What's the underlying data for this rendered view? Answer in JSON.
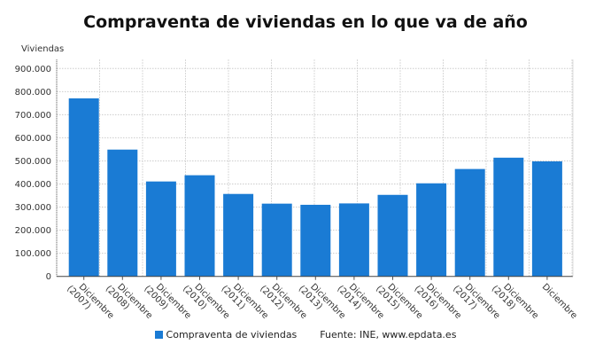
{
  "chart_data": {
    "type": "bar",
    "title": "Compraventa de viviendas en lo que va de año",
    "ylabel": "Viviendas",
    "xlabel": "",
    "ylim": [
      0,
      900000
    ],
    "yticks": [
      "0",
      "100.000",
      "200.000",
      "300.000",
      "400.000",
      "500.000",
      "600.000",
      "700.000",
      "800.000",
      "900.000"
    ],
    "grid": true,
    "legend_position": "bottom",
    "categories": [
      [
        "Diciembre",
        "(2007)"
      ],
      [
        "Diciembre",
        "(2008)"
      ],
      [
        "Diciembre",
        "(2009)"
      ],
      [
        "Diciembre",
        "(2010)"
      ],
      [
        "Diciembre",
        "(2011)"
      ],
      [
        "Diciembre",
        "(2012)"
      ],
      [
        "Diciembre",
        "(2013)"
      ],
      [
        "Diciembre",
        "(2014)"
      ],
      [
        "Diciembre",
        "(2015)"
      ],
      [
        "Diciembre",
        "(2016)"
      ],
      [
        "Diciembre",
        "(2017)"
      ],
      [
        "Diciembre",
        "(2018)"
      ],
      [
        "Diciembre",
        ""
      ]
    ],
    "series": [
      {
        "name": "Compraventa de viviendas",
        "color": "#1a7bd4",
        "values": [
          771000,
          549000,
          411000,
          438000,
          357000,
          315000,
          310000,
          316000,
          353000,
          403000,
          465000,
          514000,
          498000
        ]
      }
    ],
    "source": "Fuente: INE, www.epdata.es"
  }
}
